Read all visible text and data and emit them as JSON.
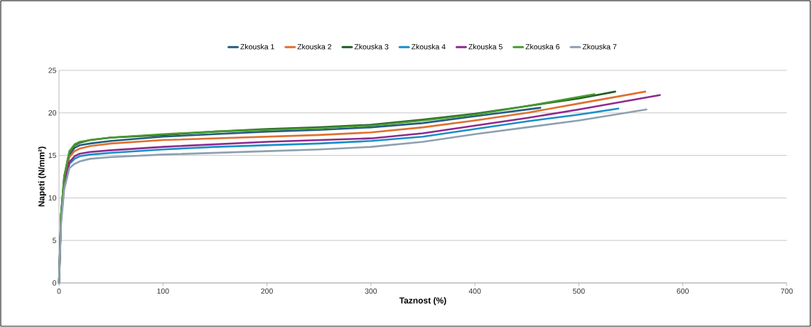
{
  "chart_data": {
    "type": "line",
    "xlabel": "Taznost (%)",
    "ylabel": "Napeti (N/mm²)",
    "xlim": [
      0,
      700
    ],
    "ylim": [
      0,
      25
    ],
    "xticks": [
      0,
      100,
      200,
      300,
      400,
      500,
      600,
      700
    ],
    "yticks": [
      0,
      5,
      10,
      15,
      20,
      25
    ],
    "grid": "y",
    "legend": "top",
    "marker": "none",
    "line_style": "solid",
    "series": [
      {
        "name": "Zkouska 1",
        "color": "#255e7e",
        "x": [
          0,
          2,
          5,
          10,
          15,
          20,
          30,
          50,
          100,
          150,
          200,
          250,
          300,
          350,
          400,
          463
        ],
        "values": [
          0,
          8,
          12,
          15,
          15.9,
          16.2,
          16.4,
          16.7,
          17.2,
          17.5,
          17.8,
          18.0,
          18.3,
          18.8,
          19.6,
          20.6
        ]
      },
      {
        "name": "Zkouska 2",
        "color": "#e07030",
        "x": [
          5,
          10,
          15,
          20,
          30,
          50,
          100,
          150,
          200,
          250,
          300,
          350,
          400,
          450,
          500,
          564
        ],
        "values": [
          12,
          14.8,
          15.5,
          15.8,
          16.1,
          16.4,
          16.8,
          17.0,
          17.2,
          17.4,
          17.7,
          18.3,
          19.1,
          20.0,
          21.1,
          22.5
        ]
      },
      {
        "name": "Zkouska 3",
        "color": "#1e5e20",
        "x": [
          0,
          2,
          5,
          10,
          15,
          20,
          30,
          50,
          100,
          150,
          200,
          250,
          300,
          350,
          400,
          450,
          500,
          535
        ],
        "values": [
          0,
          8,
          12.5,
          15.4,
          16.2,
          16.5,
          16.8,
          17.1,
          17.4,
          17.8,
          18.1,
          18.3,
          18.6,
          19.2,
          19.9,
          20.8,
          21.7,
          22.5
        ]
      },
      {
        "name": "Zkouska 4",
        "color": "#1a8fc8",
        "x": [
          5,
          10,
          15,
          20,
          30,
          50,
          100,
          150,
          200,
          250,
          300,
          350,
          400,
          450,
          500,
          538
        ],
        "values": [
          11.5,
          14,
          14.6,
          14.9,
          15.1,
          15.3,
          15.7,
          16.0,
          16.2,
          16.4,
          16.7,
          17.2,
          18.1,
          19.0,
          19.8,
          20.5
        ]
      },
      {
        "name": "Zkouska 5",
        "color": "#8e2a8e",
        "x": [
          0,
          2,
          5,
          10,
          15,
          20,
          30,
          50,
          100,
          150,
          200,
          250,
          300,
          350,
          400,
          450,
          500,
          578
        ],
        "values": [
          0,
          7.5,
          11.5,
          14.2,
          14.9,
          15.2,
          15.4,
          15.6,
          16.0,
          16.3,
          16.6,
          16.8,
          17.0,
          17.6,
          18.5,
          19.4,
          20.4,
          22.1
        ]
      },
      {
        "name": "Zkouska 6",
        "color": "#4a9a30",
        "x": [
          0,
          2,
          5,
          10,
          15,
          20,
          30,
          50,
          100,
          150,
          200,
          250,
          300,
          350,
          400,
          450,
          515
        ],
        "values": [
          0,
          8,
          12.5,
          15.5,
          16.3,
          16.6,
          16.8,
          17.1,
          17.5,
          17.8,
          18.0,
          18.2,
          18.5,
          19.1,
          19.8,
          20.8,
          22.2
        ]
      },
      {
        "name": "Zkouska 7",
        "color": "#8ea0b0",
        "x": [
          0,
          2,
          5,
          10,
          15,
          20,
          30,
          50,
          100,
          150,
          200,
          250,
          300,
          350,
          400,
          450,
          500,
          565
        ],
        "values": [
          0,
          7,
          11,
          13.5,
          14.0,
          14.3,
          14.6,
          14.8,
          15.1,
          15.3,
          15.5,
          15.7,
          16.0,
          16.6,
          17.5,
          18.3,
          19.1,
          20.4
        ]
      }
    ]
  }
}
